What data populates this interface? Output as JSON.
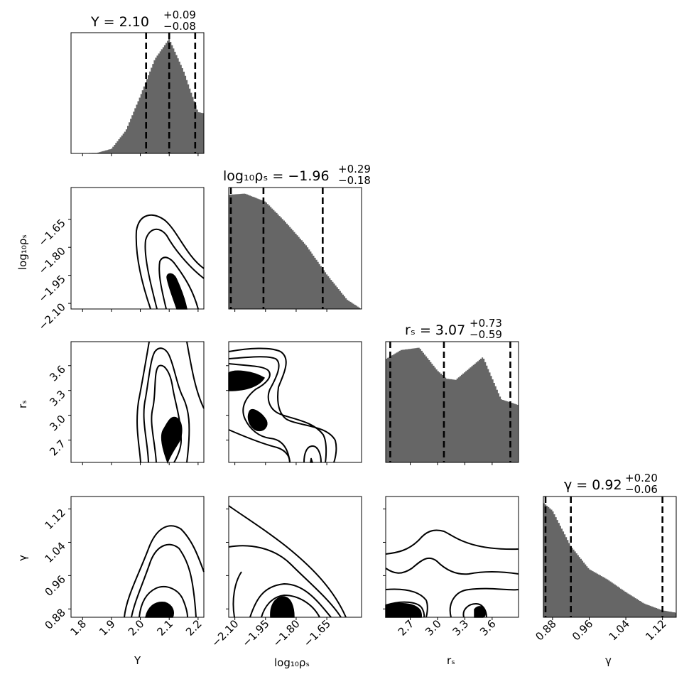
{
  "chart_data": {
    "type": "corner",
    "parameters": [
      {
        "key": "Y",
        "label": "Y",
        "range": [
          1.76,
          2.22
        ],
        "ticks": [
          1.8,
          1.9,
          2.0,
          2.1,
          2.2
        ],
        "tick_labels": [
          "1.8",
          "1.9",
          "2.0",
          "2.1",
          "2.2"
        ],
        "title": {
          "prefix": "Y = 2.10",
          "upper": "+0.09",
          "lower": "−0.08"
        },
        "median": 2.1,
        "q16": 2.02,
        "q84": 2.19
      },
      {
        "key": "log10_rho_s",
        "label": "log₁₀ρₛ",
        "range": [
          -2.13,
          -1.48
        ],
        "ticks": [
          -2.1,
          -1.95,
          -1.8,
          -1.65
        ],
        "tick_labels": [
          "−2.10",
          "−1.95",
          "−1.80",
          "−1.65"
        ],
        "title": {
          "prefix": "log₁₀ρₛ = −1.96",
          "upper": "+0.29",
          "lower": "−0.18"
        },
        "median": -1.96,
        "q16": -2.14,
        "q84": -1.67
      },
      {
        "key": "r_s",
        "label": "rₛ",
        "range": [
          2.43,
          3.89
        ],
        "ticks": [
          2.7,
          3.0,
          3.3,
          3.6
        ],
        "tick_labels": [
          "2.7",
          "3.0",
          "3.3",
          "3.6"
        ],
        "title": {
          "prefix": "rₛ = 3.07",
          "upper": "+0.73",
          "lower": "−0.59"
        },
        "median": 3.07,
        "q16": 2.48,
        "q84": 3.8
      },
      {
        "key": "gamma",
        "label": "γ",
        "range": [
          0.86,
          1.15
        ],
        "ticks": [
          0.88,
          0.96,
          1.04,
          1.12
        ],
        "tick_labels": [
          "0.88",
          "0.96",
          "1.04",
          "1.12"
        ],
        "title": {
          "prefix": "γ = 0.92",
          "upper": "+0.20",
          "lower": "−0.06"
        },
        "median": 0.92,
        "q16": 0.86,
        "q84": 1.12
      }
    ],
    "marginals": [
      {
        "param": "Y",
        "shape": "peaked",
        "values_x": [
          1.76,
          1.85,
          1.9,
          1.95,
          2.0,
          2.05,
          2.1,
          2.15,
          2.2,
          2.22
        ],
        "density": [
          0.0,
          0.005,
          0.04,
          0.2,
          0.5,
          0.82,
          1.0,
          0.72,
          0.36,
          0.35
        ]
      },
      {
        "param": "log10_rho_s",
        "values_x": [
          -2.13,
          -2.05,
          -1.95,
          -1.85,
          -1.75,
          -1.65,
          -1.55,
          -1.48
        ],
        "density": [
          0.99,
          1.0,
          0.93,
          0.75,
          0.55,
          0.3,
          0.08,
          0.0
        ]
      },
      {
        "param": "r_s",
        "values_x": [
          2.43,
          2.6,
          2.8,
          3.0,
          3.1,
          3.2,
          3.5,
          3.7,
          3.89
        ],
        "density": [
          0.9,
          0.98,
          1.0,
          0.8,
          0.73,
          0.72,
          0.92,
          0.55,
          0.5
        ]
      },
      {
        "param": "gamma",
        "values_x": [
          0.86,
          0.88,
          0.92,
          0.96,
          1.0,
          1.04,
          1.08,
          1.12,
          1.15
        ],
        "density": [
          1.0,
          0.93,
          0.62,
          0.42,
          0.33,
          0.22,
          0.12,
          0.06,
          0.04
        ]
      }
    ],
    "joint": [
      {
        "x": "Y",
        "y": "log10_rho_s",
        "contours": 4
      },
      {
        "x": "Y",
        "y": "r_s",
        "contours": 4
      },
      {
        "x": "log10_rho_s",
        "y": "r_s",
        "contours": 4
      },
      {
        "x": "Y",
        "y": "gamma",
        "contours": 4
      },
      {
        "x": "log10_rho_s",
        "y": "gamma",
        "contours": 4
      },
      {
        "x": "r_s",
        "y": "gamma",
        "contours": 4
      }
    ],
    "grid": false
  }
}
